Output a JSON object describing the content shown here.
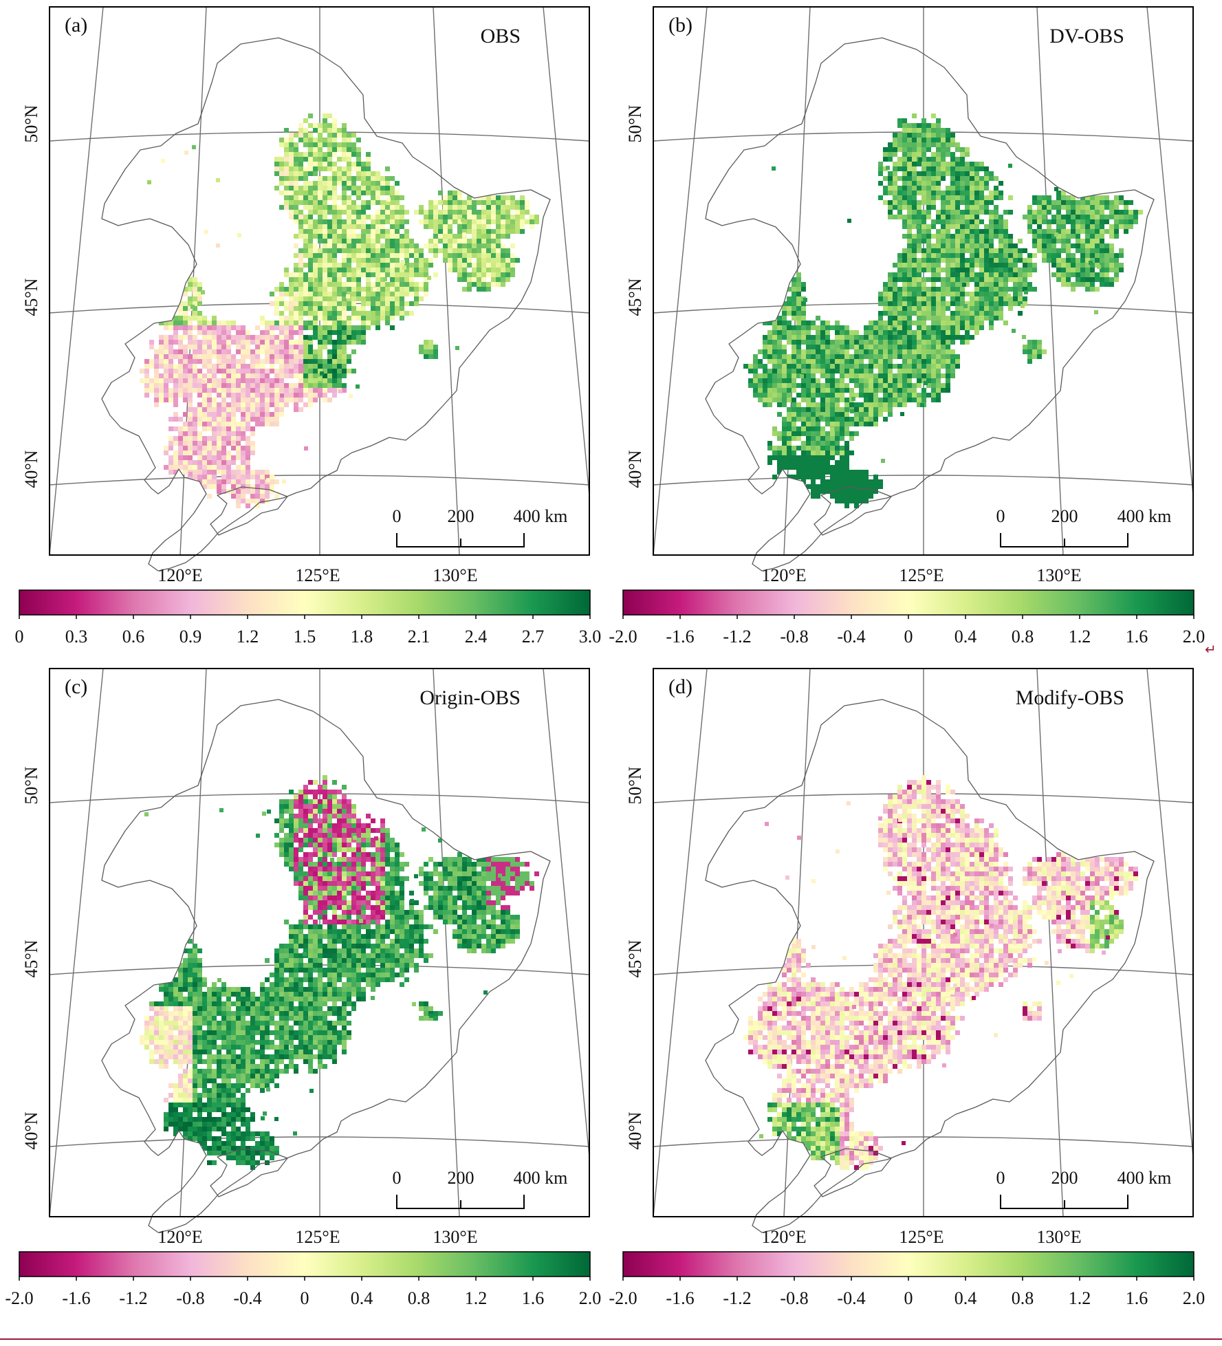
{
  "panels": [
    {
      "label": "(a)",
      "title": "OBS",
      "colorbar_ticks": [
        "0",
        "0.3",
        "0.6",
        "0.9",
        "1.2",
        "1.5",
        "1.8",
        "2.1",
        "2.4",
        "2.7",
        "3.0"
      ],
      "colorbar_range": [
        0,
        3.0
      ],
      "pattern": "a"
    },
    {
      "label": "(b)",
      "title": "DV-OBS",
      "colorbar_ticks": [
        "-2.0",
        "-1.6",
        "-1.2",
        "-0.8",
        "-0.4",
        "0",
        "0.4",
        "0.8",
        "1.2",
        "1.6",
        "2.0"
      ],
      "colorbar_range": [
        -2.0,
        2.0
      ],
      "pattern": "b"
    },
    {
      "label": "(c)",
      "title": "Origin-OBS",
      "colorbar_ticks": [
        "-2.0",
        "-1.6",
        "-1.2",
        "-0.8",
        "-0.4",
        "0",
        "0.4",
        "0.8",
        "1.2",
        "1.6",
        "2.0"
      ],
      "colorbar_range": [
        -2.0,
        2.0
      ],
      "pattern": "c"
    },
    {
      "label": "(d)",
      "title": "Modify-OBS",
      "colorbar_ticks": [
        "-2.0",
        "-1.6",
        "-1.2",
        "-0.8",
        "-0.4",
        "0",
        "0.4",
        "0.8",
        "1.2",
        "1.6",
        "2.0"
      ],
      "colorbar_range": [
        -2.0,
        2.0
      ],
      "pattern": "d"
    }
  ],
  "lat_labels": [
    "50°N",
    "45°N",
    "40°N"
  ],
  "lon_labels": [
    "120°E",
    "125°E",
    "130°E"
  ],
  "scale_bar": {
    "ticks": [
      "0",
      "200",
      "400 km"
    ]
  },
  "colormap": [
    "#8e0152",
    "#c51b7d",
    "#de77ae",
    "#f1b6da",
    "#fde0c5",
    "#ffffbf",
    "#d9ef8b",
    "#a6d96a",
    "#66bd63",
    "#1a9850",
    "#006837"
  ],
  "margin_mark": "↵"
}
